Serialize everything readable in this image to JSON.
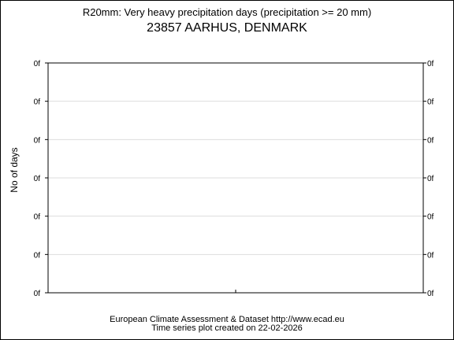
{
  "chart_data": {
    "type": "line",
    "title": "R20mm: Very heavy precipitation days (precipitation >= 20 mm)",
    "subtitle": "23857 AARHUS, DENMARK",
    "xlabel": "",
    "ylabel": "No of days",
    "y_tick_labels": [
      "0f",
      "0f",
      "0f",
      "0f",
      "0f",
      "0f",
      "0f"
    ],
    "x_tick_labels": [],
    "series": [],
    "grid": true,
    "legend": "none"
  },
  "footer": {
    "line1": "European Climate Assessment & Dataset  http://www.ecad.eu",
    "line2": "Time series plot created on 22-02-2026"
  }
}
